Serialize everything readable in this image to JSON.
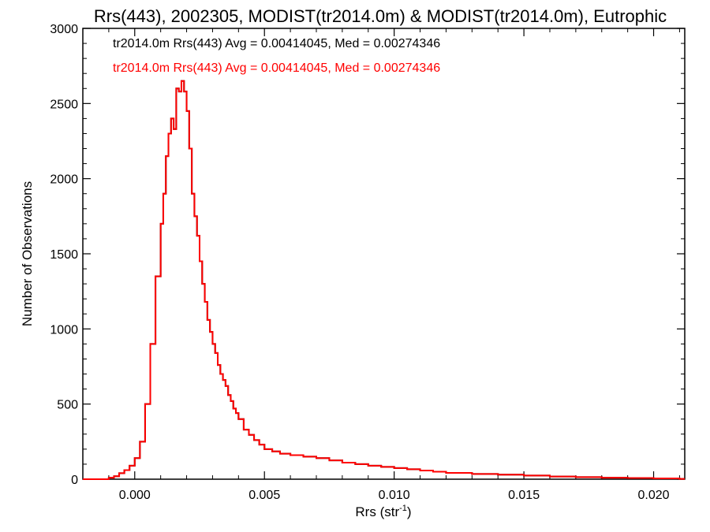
{
  "chart_data": {
    "type": "line",
    "title": "Rrs(443), 2002305, MODIST(tr2014.0m) & MODIST(tr2014.0m), Eutrophic",
    "xlabel_base": "Rrs (str",
    "xlabel_sup": "-1",
    "xlabel_close": ")",
    "ylabel": "Number of Observations",
    "xlim": [
      -0.002,
      0.0212
    ],
    "ylim": [
      0,
      3000
    ],
    "xticks": [
      0.0,
      0.005,
      0.01,
      0.015,
      0.02
    ],
    "xtick_labels": [
      "0.000",
      "0.005",
      "0.010",
      "0.015",
      "0.020"
    ],
    "yticks": [
      0,
      500,
      1000,
      1500,
      2000,
      2500,
      3000
    ],
    "ytick_labels": [
      "0",
      "500",
      "1000",
      "1500",
      "2000",
      "2500",
      "3000"
    ],
    "step": "histogram",
    "legend": [
      {
        "text": "tr2014.0m Rrs(443) Avg = 0.00414045, Med = 0.00274346",
        "color": "#000000"
      },
      {
        "text": "tr2014.0m Rrs(443) Avg = 0.00414045, Med = 0.00274346",
        "color": "#ff0000"
      }
    ],
    "legend_position": "top-left",
    "series": [
      {
        "name": "tr2014.0m Rrs(443)",
        "color": "#ff0000",
        "x": [
          -0.002,
          -0.0012,
          -0.001,
          -0.0008,
          -0.0006,
          -0.0004,
          -0.0002,
          0.0,
          0.0002,
          0.0004,
          0.0006,
          0.0008,
          0.001,
          0.0011,
          0.0012,
          0.0013,
          0.0014,
          0.0015,
          0.0016,
          0.0017,
          0.0018,
          0.0019,
          0.002,
          0.0021,
          0.0022,
          0.0023,
          0.0024,
          0.0025,
          0.0026,
          0.0027,
          0.0028,
          0.0029,
          0.003,
          0.0031,
          0.0032,
          0.0033,
          0.0034,
          0.0035,
          0.0036,
          0.0037,
          0.0038,
          0.0039,
          0.004,
          0.0042,
          0.0044,
          0.0046,
          0.0048,
          0.005,
          0.0053,
          0.0056,
          0.006,
          0.0065,
          0.007,
          0.0075,
          0.008,
          0.0085,
          0.009,
          0.0095,
          0.01,
          0.0105,
          0.011,
          0.0115,
          0.012,
          0.013,
          0.014,
          0.015,
          0.016,
          0.017,
          0.018,
          0.019,
          0.02,
          0.021
        ],
        "y": [
          0,
          0,
          10,
          20,
          40,
          60,
          90,
          140,
          250,
          500,
          900,
          1350,
          1700,
          1900,
          2150,
          2300,
          2400,
          2330,
          2600,
          2580,
          2650,
          2580,
          2450,
          2200,
          1900,
          1750,
          1620,
          1450,
          1300,
          1180,
          1060,
          980,
          900,
          840,
          760,
          700,
          660,
          620,
          560,
          520,
          470,
          440,
          400,
          330,
          295,
          260,
          230,
          200,
          185,
          170,
          160,
          150,
          140,
          125,
          110,
          100,
          90,
          82,
          74,
          66,
          58,
          50,
          42,
          35,
          30,
          24,
          18,
          14,
          10,
          8,
          5,
          2
        ]
      },
      {
        "name": "tr2014.0m Rrs(443)",
        "color": "#000000",
        "x": [
          -0.002,
          -0.0012,
          -0.001,
          -0.0008,
          -0.0006,
          -0.0004,
          -0.0002,
          0.0,
          0.0002,
          0.0004,
          0.0006,
          0.0008,
          0.001,
          0.0011,
          0.0012,
          0.0013,
          0.0014,
          0.0015,
          0.0016,
          0.0017,
          0.0018,
          0.0019,
          0.002,
          0.0021,
          0.0022,
          0.0023,
          0.0024,
          0.0025,
          0.0026,
          0.0027,
          0.0028,
          0.0029,
          0.003,
          0.0031,
          0.0032,
          0.0033,
          0.0034,
          0.0035,
          0.0036,
          0.0037,
          0.0038,
          0.0039,
          0.004,
          0.0042,
          0.0044,
          0.0046,
          0.0048,
          0.005,
          0.0053,
          0.0056,
          0.006,
          0.0065,
          0.007,
          0.0075,
          0.008,
          0.0085,
          0.009,
          0.0095,
          0.01,
          0.0105,
          0.011,
          0.0115,
          0.012,
          0.013,
          0.014,
          0.015,
          0.016,
          0.017,
          0.018,
          0.019,
          0.02,
          0.021
        ],
        "y": [
          0,
          0,
          10,
          20,
          40,
          60,
          90,
          140,
          250,
          500,
          900,
          1350,
          1700,
          1900,
          2150,
          2300,
          2400,
          2330,
          2600,
          2580,
          2650,
          2580,
          2450,
          2200,
          1900,
          1750,
          1620,
          1450,
          1300,
          1180,
          1060,
          980,
          900,
          840,
          760,
          700,
          660,
          620,
          560,
          520,
          470,
          440,
          400,
          330,
          295,
          260,
          230,
          200,
          185,
          170,
          160,
          150,
          140,
          125,
          110,
          100,
          90,
          82,
          74,
          66,
          58,
          50,
          42,
          35,
          30,
          24,
          18,
          14,
          10,
          8,
          5,
          2
        ]
      }
    ]
  }
}
